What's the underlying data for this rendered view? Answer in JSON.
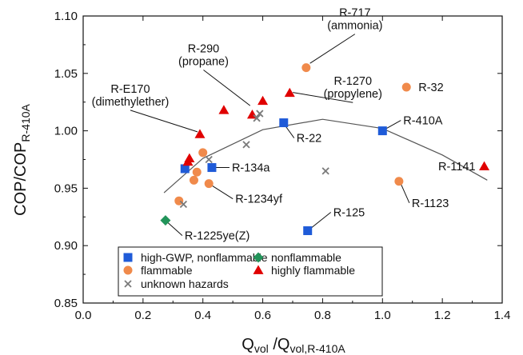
{
  "chart_data": {
    "type": "scatter",
    "xlim": [
      0.0,
      1.4
    ],
    "ylim": [
      0.85,
      1.1
    ],
    "x_ticks": [
      "0.0",
      "0.2",
      "0.4",
      "0.6",
      "0.8",
      "1.0",
      "1.2",
      "1.4"
    ],
    "y_ticks": [
      "0.85",
      "0.90",
      "0.95",
      "1.00",
      "1.05",
      "1.10"
    ],
    "xlabel": {
      "main": "Q",
      "sub1": "vol",
      "mid": " /Q",
      "sub2": "vol,R-410A"
    },
    "ylabel": {
      "main": "COP/COP",
      "sub": "R-410A"
    },
    "legend_position": "bottom-center",
    "colors": {
      "blue": "#1f5bd8",
      "orange": "#f08a4b",
      "green": "#22945a",
      "red": "#e00000",
      "gray": "#7a7a7a",
      "curve": "#555555"
    },
    "series": [
      {
        "name": "high-GWP, nonflammable",
        "marker": "square",
        "color": "#1f5bd8",
        "points": [
          [
            0.34,
            0.967
          ],
          [
            0.43,
            0.968
          ],
          [
            0.67,
            1.007
          ],
          [
            0.75,
            0.913
          ],
          [
            1.0,
            1.0
          ]
        ]
      },
      {
        "name": "nonflammable",
        "marker": "diamond",
        "color": "#22945a",
        "points": [
          [
            0.275,
            0.922
          ]
        ]
      },
      {
        "name": "flammable",
        "marker": "circle",
        "color": "#f08a4b",
        "points": [
          [
            0.32,
            0.939
          ],
          [
            0.37,
            0.957
          ],
          [
            0.38,
            0.964
          ],
          [
            0.4,
            0.981
          ],
          [
            0.42,
            0.954
          ],
          [
            0.745,
            1.055
          ],
          [
            1.055,
            0.956
          ],
          [
            1.08,
            1.038
          ]
        ]
      },
      {
        "name": "highly flammable",
        "marker": "triangle",
        "color": "#e00000",
        "points": [
          [
            0.35,
            0.973
          ],
          [
            0.355,
            0.976
          ],
          [
            0.39,
            0.997
          ],
          [
            0.47,
            1.018
          ],
          [
            0.565,
            1.014
          ],
          [
            0.6,
            1.026
          ],
          [
            0.69,
            1.033
          ],
          [
            1.34,
            0.969
          ]
        ]
      },
      {
        "name": "unknown hazards",
        "marker": "x",
        "color": "#7a7a7a",
        "points": [
          [
            0.335,
            0.936
          ],
          [
            0.42,
            0.975
          ],
          [
            0.545,
            0.988
          ],
          [
            0.58,
            1.011
          ],
          [
            0.59,
            1.015
          ],
          [
            0.81,
            0.965
          ]
        ]
      }
    ],
    "fit_curve": {
      "type": "quadratic",
      "points": [
        [
          0.27,
          0.946
        ],
        [
          0.4,
          0.976
        ],
        [
          0.6,
          1.001
        ],
        [
          0.8,
          1.01
        ],
        [
          1.0,
          1.002
        ],
        [
          1.2,
          0.979
        ],
        [
          1.35,
          0.957
        ]
      ]
    },
    "annotations": [
      {
        "lines": [
          "R-717",
          "(ammonia)"
        ],
        "target": [
          0.745,
          1.055
        ]
      },
      {
        "lines": [
          "R-290",
          "(propane)"
        ],
        "target": [
          0.565,
          1.014
        ]
      },
      {
        "lines": [
          "R-1270",
          "(propylene)"
        ],
        "target": [
          0.69,
          1.033
        ]
      },
      {
        "lines": [
          "R-32"
        ],
        "target": [
          1.08,
          1.038
        ]
      },
      {
        "lines": [
          "R-E170",
          "(dimethylether)"
        ],
        "target": [
          0.39,
          0.997
        ]
      },
      {
        "lines": [
          "R-22"
        ],
        "target": [
          0.67,
          1.007
        ]
      },
      {
        "lines": [
          "R-410A"
        ],
        "target": [
          1.0,
          1.0
        ]
      },
      {
        "lines": [
          "R-134a"
        ],
        "target": [
          0.43,
          0.968
        ]
      },
      {
        "lines": [
          "R-1141"
        ],
        "target": [
          1.34,
          0.969
        ]
      },
      {
        "lines": [
          "R-1234yf"
        ],
        "target": [
          0.42,
          0.954
        ]
      },
      {
        "lines": [
          "R-1123"
        ],
        "target": [
          1.055,
          0.956
        ]
      },
      {
        "lines": [
          "R-125"
        ],
        "target": [
          0.75,
          0.913
        ]
      },
      {
        "lines": [
          "R-1225ye(Z)"
        ],
        "target": [
          0.275,
          0.922
        ]
      }
    ],
    "legend": [
      {
        "label": "high-GWP, nonflammable",
        "marker": "square",
        "color": "#1f5bd8"
      },
      {
        "label": "nonflammable",
        "marker": "diamond",
        "color": "#22945a"
      },
      {
        "label": "flammable",
        "marker": "circle",
        "color": "#f08a4b"
      },
      {
        "label": "highly flammable",
        "marker": "triangle",
        "color": "#e00000"
      },
      {
        "label": "unknown hazards",
        "marker": "x",
        "color": "#7a7a7a"
      }
    ]
  }
}
